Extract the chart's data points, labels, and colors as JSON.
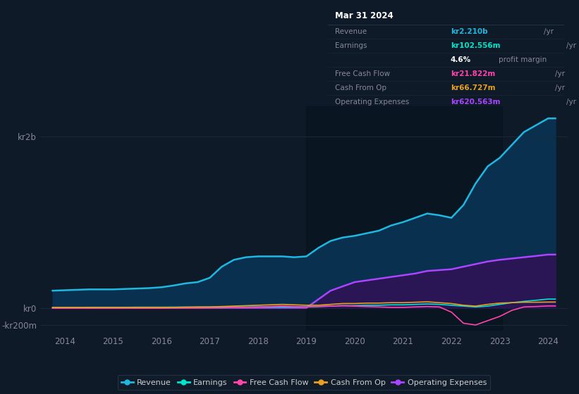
{
  "background_color": "#0e1a27",
  "plot_bg_color": "#0e1a27",
  "grid_color": "#1a2a3a",
  "x_years": [
    2013.75,
    2014.0,
    2014.25,
    2014.5,
    2014.75,
    2015.0,
    2015.25,
    2015.5,
    2015.75,
    2016.0,
    2016.25,
    2016.5,
    2016.75,
    2017.0,
    2017.25,
    2017.5,
    2017.75,
    2018.0,
    2018.25,
    2018.5,
    2018.75,
    2019.0,
    2019.25,
    2019.5,
    2019.75,
    2020.0,
    2020.25,
    2020.5,
    2020.75,
    2021.0,
    2021.25,
    2021.5,
    2021.75,
    2022.0,
    2022.25,
    2022.5,
    2022.75,
    2023.0,
    2023.25,
    2023.5,
    2023.75,
    2024.0,
    2024.15
  ],
  "revenue": [
    200,
    205,
    210,
    215,
    215,
    215,
    220,
    225,
    230,
    240,
    260,
    285,
    300,
    350,
    480,
    560,
    590,
    600,
    600,
    600,
    590,
    600,
    700,
    780,
    820,
    840,
    870,
    900,
    960,
    1000,
    1050,
    1100,
    1080,
    1050,
    1200,
    1450,
    1650,
    1750,
    1900,
    2050,
    2130,
    2210,
    2210
  ],
  "earnings": [
    5,
    5,
    5,
    6,
    6,
    6,
    6,
    7,
    7,
    7,
    8,
    8,
    8,
    9,
    9,
    10,
    10,
    10,
    10,
    11,
    11,
    11,
    15,
    20,
    25,
    25,
    30,
    30,
    35,
    35,
    40,
    45,
    40,
    30,
    20,
    10,
    20,
    40,
    60,
    75,
    88,
    102,
    102
  ],
  "free_cash_flow": [
    -5,
    -5,
    -5,
    -5,
    -5,
    -5,
    -5,
    -5,
    -5,
    -5,
    -3,
    -2,
    -2,
    0,
    0,
    5,
    5,
    10,
    15,
    20,
    15,
    10,
    15,
    20,
    25,
    20,
    15,
    10,
    5,
    5,
    10,
    15,
    10,
    -50,
    -180,
    -200,
    -150,
    -100,
    -30,
    10,
    15,
    22,
    22
  ],
  "cash_from_op": [
    5,
    5,
    5,
    5,
    5,
    5,
    5,
    5,
    5,
    5,
    5,
    8,
    10,
    10,
    15,
    20,
    25,
    30,
    35,
    40,
    35,
    30,
    30,
    40,
    50,
    50,
    55,
    55,
    60,
    60,
    65,
    70,
    60,
    50,
    30,
    20,
    40,
    55,
    60,
    65,
    65,
    67,
    67
  ],
  "operating_expenses": [
    0,
    0,
    0,
    0,
    0,
    0,
    0,
    0,
    0,
    0,
    0,
    0,
    0,
    0,
    0,
    0,
    0,
    0,
    0,
    0,
    0,
    0,
    100,
    200,
    250,
    300,
    320,
    340,
    360,
    380,
    400,
    430,
    440,
    450,
    480,
    510,
    540,
    560,
    575,
    590,
    605,
    621,
    621
  ],
  "revenue_color": "#1eb8e0",
  "earnings_color": "#00e5cc",
  "free_cash_flow_color": "#ff44aa",
  "cash_from_op_color": "#e8a020",
  "operating_expenses_color": "#aa44ff",
  "revenue_fill_color": "#0a3050",
  "operating_expenses_fill_color": "#2a1555",
  "ylim_min": -270,
  "ylim_max": 2350,
  "ytick_vals": [
    -200,
    0,
    2000
  ],
  "ytick_labels": [
    "-kr200m",
    "kr0",
    "kr2b"
  ],
  "xlim_min": 2013.5,
  "xlim_max": 2024.4,
  "xtick_vals": [
    2014,
    2015,
    2016,
    2017,
    2018,
    2019,
    2020,
    2021,
    2022,
    2023,
    2024
  ],
  "legend_items": [
    {
      "label": "Revenue",
      "color": "#1eb8e0"
    },
    {
      "label": "Earnings",
      "color": "#00e5cc"
    },
    {
      "label": "Free Cash Flow",
      "color": "#ff44aa"
    },
    {
      "label": "Cash From Op",
      "color": "#e8a020"
    },
    {
      "label": "Operating Expenses",
      "color": "#aa44ff"
    }
  ],
  "info_box_bg": "#050d18",
  "info_box_border": "#2a3a4a",
  "info_date": "Mar 31 2024",
  "info_rows": [
    {
      "label": "Revenue",
      "value": "kr2.210b",
      "value_color": "#1eb8e0",
      "unit": " /yr"
    },
    {
      "label": "Earnings",
      "value": "kr102.556m",
      "value_color": "#00e5cc",
      "unit": " /yr"
    },
    {
      "label": "",
      "value": "4.6%",
      "value_color": "#ffffff",
      "unit": " profit margin"
    },
    {
      "label": "Free Cash Flow",
      "value": "kr21.822m",
      "value_color": "#ff44aa",
      "unit": " /yr"
    },
    {
      "label": "Cash From Op",
      "value": "kr66.727m",
      "value_color": "#e8a020",
      "unit": " /yr"
    },
    {
      "label": "Operating Expenses",
      "value": "kr620.563m",
      "value_color": "#aa44ff",
      "unit": " /yr"
    }
  ],
  "highlight_x_start": 2019.0,
  "highlight_x_end": 2023.05
}
